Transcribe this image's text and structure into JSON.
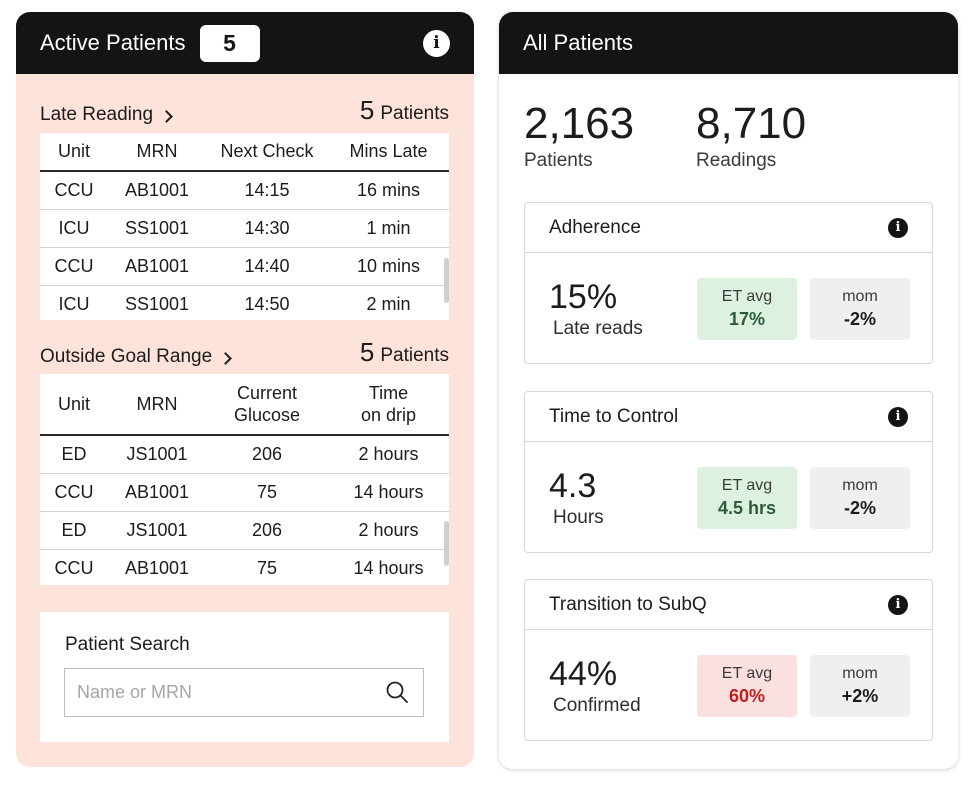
{
  "active": {
    "title": "Active Patients",
    "count": "5",
    "late": {
      "title": "Late Reading",
      "count": "5",
      "count_label": "Patients",
      "columns": [
        "Unit",
        "MRN",
        "Next Check",
        "Mins Late"
      ],
      "rows": [
        [
          "CCU",
          "AB1001",
          "14:15",
          "16 mins"
        ],
        [
          "ICU",
          "SS1001",
          "14:30",
          "1 min"
        ],
        [
          "CCU",
          "AB1001",
          "14:40",
          "10 mins"
        ],
        [
          "ICU",
          "SS1001",
          "14:50",
          "2 min"
        ]
      ]
    },
    "outside": {
      "title": "Outside Goal Range",
      "count": "5",
      "count_label": "Patients",
      "columns": [
        "Unit",
        "MRN",
        "Current Glucose",
        "Time on drip"
      ],
      "rows": [
        [
          "ED",
          "JS1001",
          "206",
          "2 hours"
        ],
        [
          "CCU",
          "AB1001",
          "75",
          "14 hours"
        ],
        [
          "ED",
          "JS1001",
          "206",
          "2 hours"
        ],
        [
          "CCU",
          "AB1001",
          "75",
          "14 hours"
        ]
      ]
    },
    "search": {
      "label": "Patient Search",
      "placeholder": "Name or MRN"
    }
  },
  "all": {
    "title": "All Patients",
    "patients_value": "2,163",
    "patients_label": "Patients",
    "readings_value": "8,710",
    "readings_label": "Readings",
    "metrics": [
      {
        "title": "Adherence",
        "value": "15%",
        "label": "Late reads",
        "et_label": "ET avg",
        "et_value": "17%",
        "et_status": "good",
        "mom_label": "mom",
        "mom_value": "-2%"
      },
      {
        "title": "Time to Control",
        "value": "4.3",
        "label": "Hours",
        "et_label": "ET avg",
        "et_value": "4.5 hrs",
        "et_status": "good",
        "mom_label": "mom",
        "mom_value": "-2%"
      },
      {
        "title": "Transition to SubQ",
        "value": "44%",
        "label": "Confirmed",
        "et_label": "ET avg",
        "et_value": "60%",
        "et_status": "bad",
        "mom_label": "mom",
        "mom_value": "+2%"
      }
    ]
  },
  "colors": {
    "header_bg": "#141414",
    "left_panel_bg": "#fde3da",
    "good_pill_bg": "#dcf1df",
    "good_text": "#2d5a3b",
    "bad_pill_bg": "#fbe0e0",
    "bad_text": "#c0201d"
  },
  "icons": [
    "info-icon",
    "chevron-right-icon",
    "search-icon"
  ]
}
